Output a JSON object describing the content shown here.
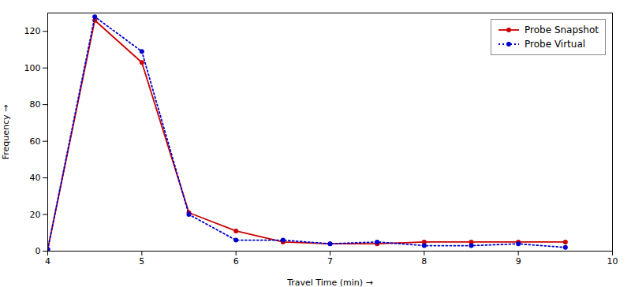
{
  "chart_data": {
    "type": "line",
    "xlabel": "Travel Time (min)",
    "ylabel": "Frequency",
    "x": [
      4.0,
      4.5,
      5.0,
      5.5,
      6.0,
      6.5,
      7.0,
      7.5,
      8.0,
      8.5,
      9.0,
      9.5
    ],
    "series": [
      {
        "name": "Probe Snapshot",
        "color": "#cc0000",
        "line_style": "solid",
        "marker": "circle",
        "values": [
          1,
          126,
          103,
          21,
          11,
          5,
          4,
          4,
          5,
          5,
          5,
          5
        ]
      },
      {
        "name": "Probe Virtual",
        "color": "#0000cc",
        "line_style": "dotted",
        "marker": "circle",
        "values": [
          1,
          128,
          109,
          20,
          6,
          6,
          4,
          5,
          3,
          3,
          4,
          2
        ]
      }
    ],
    "xlim": [
      4,
      10
    ],
    "ylim": [
      0,
      130
    ],
    "xticks": [
      4,
      5,
      6,
      7,
      8,
      9,
      10
    ],
    "yticks": [
      0,
      20,
      40,
      60,
      80,
      100,
      120
    ],
    "grid": false,
    "legend": "upper right"
  }
}
